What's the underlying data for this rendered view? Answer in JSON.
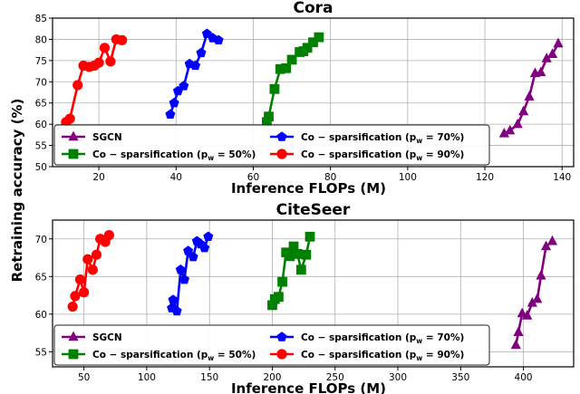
{
  "ylabel": "Retraining accuracy (%)",
  "chart_data": [
    {
      "type": "line",
      "title": "Cora",
      "xlabel": "Inference FLOPs (M)",
      "ylabel": "Retraining accuracy (%)",
      "xlim": [
        8,
        143
      ],
      "ylim": [
        50,
        85
      ],
      "xticks": [
        20,
        40,
        60,
        80,
        100,
        120,
        140
      ],
      "yticks": [
        50,
        55,
        60,
        65,
        70,
        75,
        80,
        85
      ],
      "grid": true,
      "legend": "bottom",
      "series": [
        {
          "name": "SGCN",
          "color": "#800080",
          "marker": "triangle",
          "x": [
            125.0,
            126.5,
            128.5,
            130.0,
            131.5,
            133.0,
            134.5,
            136.0,
            137.5,
            139.0
          ],
          "y": [
            57.8,
            58.5,
            60.0,
            63.0,
            66.5,
            72.0,
            72.2,
            75.5,
            76.5,
            79.0
          ]
        },
        {
          "name": "Co − sparsification (p_w = 50%)",
          "color": "#008000",
          "marker": "square",
          "x": [
            63.5,
            64.0,
            65.5,
            67.0,
            68.5,
            70.0,
            72.0,
            73.0,
            74.0,
            75.5,
            77.0
          ],
          "y": [
            60.5,
            61.8,
            68.3,
            73.0,
            73.2,
            75.2,
            77.0,
            77.2,
            78.0,
            79.3,
            80.5
          ]
        },
        {
          "name": "Co − sparsification (p_w = 70%)",
          "color": "#0000ff",
          "marker": "pentagon",
          "x": [
            38.5,
            39.5,
            40.5,
            42.0,
            43.5,
            45.0,
            46.5,
            48.0,
            49.5,
            51.0
          ],
          "y": [
            62.3,
            65.0,
            67.8,
            69.0,
            74.2,
            73.8,
            76.8,
            81.3,
            80.3,
            79.8
          ]
        },
        {
          "name": "Co − sparsification (p_w = 90%)",
          "color": "#ff0000",
          "marker": "circle",
          "x": [
            11.5,
            12.5,
            14.5,
            16.0,
            17.5,
            18.8,
            20.0,
            21.5,
            23.0,
            24.5,
            26.0
          ],
          "y": [
            60.5,
            61.3,
            69.2,
            73.8,
            73.5,
            73.8,
            74.5,
            78.0,
            74.8,
            80.0,
            79.8
          ]
        }
      ]
    },
    {
      "type": "line",
      "title": "CiteSeer",
      "xlabel": "Inference FLOPs (M)",
      "ylabel": "Retraining accuracy (%)",
      "xlim": [
        25,
        440
      ],
      "ylim": [
        53,
        72.5
      ],
      "xticks": [
        50,
        100,
        150,
        200,
        250,
        300,
        350,
        400
      ],
      "yticks": [
        55,
        60,
        65,
        70
      ],
      "grid": true,
      "legend": "bottom",
      "series": [
        {
          "name": "SGCN",
          "color": "#800080",
          "marker": "triangle",
          "x": [
            394,
            396,
            399,
            403,
            407,
            411,
            414,
            418,
            423
          ],
          "y": [
            55.9,
            57.6,
            60.1,
            59.8,
            61.5,
            62.0,
            65.1,
            69.0,
            69.7
          ]
        },
        {
          "name": "Co − sparsification (p_w = 50%)",
          "color": "#008000",
          "marker": "square",
          "x": [
            200,
            202,
            205,
            208,
            211,
            214,
            217,
            220,
            223,
            227,
            230
          ],
          "y": [
            61.2,
            62.0,
            62.3,
            64.3,
            68.2,
            67.7,
            69.0,
            68.0,
            65.9,
            67.9,
            70.3
          ]
        },
        {
          "name": "Co − sparsification (p_w = 70%)",
          "color": "#0000ff",
          "marker": "pentagon",
          "x": [
            120,
            121,
            124,
            127,
            130,
            133,
            137,
            140,
            143,
            146,
            149
          ],
          "y": [
            60.8,
            61.9,
            60.4,
            65.9,
            64.6,
            68.4,
            67.6,
            69.7,
            69.3,
            68.8,
            70.3
          ]
        },
        {
          "name": "Co − sparsification (p_w = 90%)",
          "color": "#ff0000",
          "marker": "circle",
          "x": [
            41,
            43,
            47,
            50,
            53,
            57,
            60,
            63,
            67,
            70
          ],
          "y": [
            61.0,
            62.4,
            64.6,
            62.9,
            67.3,
            65.9,
            67.9,
            70.0,
            69.6,
            70.5
          ]
        }
      ]
    }
  ]
}
